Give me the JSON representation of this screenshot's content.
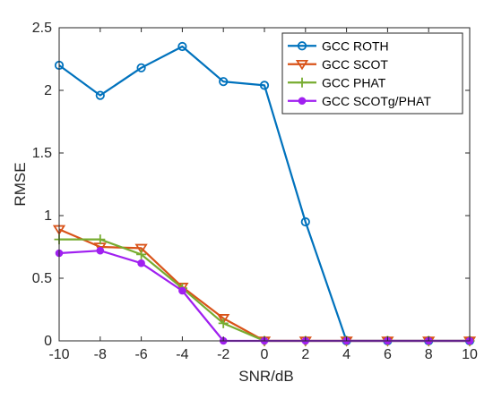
{
  "chart_data": {
    "type": "line",
    "xlabel": "SNR/dB",
    "ylabel": "RMSE",
    "xlim": [
      -10,
      10
    ],
    "ylim": [
      0,
      2.5
    ],
    "xticks": [
      -10,
      -8,
      -6,
      -4,
      -2,
      0,
      2,
      4,
      6,
      8,
      10
    ],
    "yticks": [
      0,
      0.5,
      1,
      1.5,
      2,
      2.5
    ],
    "xtick_labels": [
      "-10",
      "-8",
      "-6",
      "-4",
      "-2",
      "0",
      "2",
      "4",
      "6",
      "8",
      "10"
    ],
    "ytick_labels": [
      "0",
      "0.5",
      "1",
      "1.5",
      "2",
      "2.5"
    ],
    "x": [
      -10,
      -8,
      -6,
      -4,
      -2,
      0,
      2,
      4,
      6,
      8,
      10
    ],
    "grid": false,
    "legend_position": "top-right",
    "series": [
      {
        "name": "GCC ROTH",
        "color": "#0072BD",
        "marker": "circle",
        "values": [
          2.2,
          1.96,
          2.18,
          2.35,
          2.07,
          2.04,
          0.95,
          0,
          0,
          0,
          0
        ]
      },
      {
        "name": "GCC SCOT",
        "color": "#D95319",
        "marker": "triangle-down",
        "values": [
          0.89,
          0.75,
          0.74,
          0.43,
          0.18,
          0,
          0,
          0,
          0,
          0,
          0
        ]
      },
      {
        "name": "GCC PHAT",
        "color": "#77AC30",
        "marker": "plus",
        "values": [
          0.81,
          0.81,
          0.69,
          0.42,
          0.14,
          0,
          0,
          0,
          0,
          0,
          0
        ]
      },
      {
        "name": "GCC SCOTg/PHAT",
        "color": "#A020F0",
        "marker": "star",
        "values": [
          0.7,
          0.72,
          0.62,
          0.4,
          0,
          0,
          0,
          0,
          0,
          0,
          0
        ]
      }
    ]
  }
}
